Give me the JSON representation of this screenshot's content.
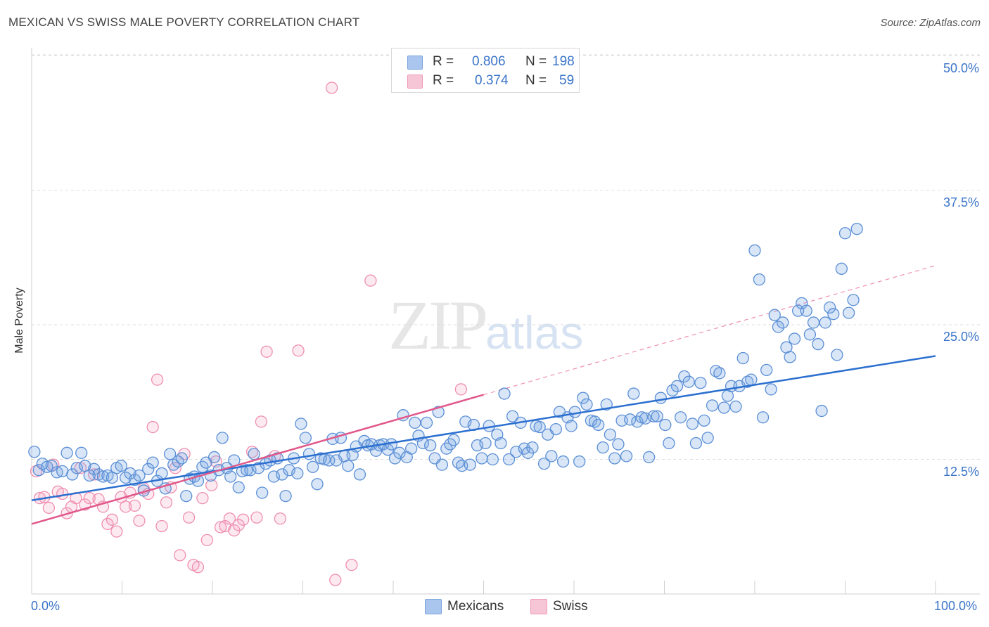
{
  "title": "MEXICAN VS SWISS MALE POVERTY CORRELATION CHART",
  "source": "Source: ZipAtlas.com",
  "watermark": {
    "zip": "ZIP",
    "atlas": "atlas"
  },
  "legend": {
    "rows": [
      {
        "r_label": "R =",
        "r_value": "0.806",
        "n_label": "N =",
        "n_value": "198",
        "color": "#aac6ef"
      },
      {
        "r_label": "R =",
        "r_value": "0.374",
        "n_label": "N =",
        "n_value": "59",
        "color": "#f7b6ca"
      }
    ]
  },
  "bottom_legend": [
    {
      "label": "Mexicans",
      "color": "#aac6ef"
    },
    {
      "label": "Swiss",
      "color": "#f7b6ca"
    }
  ],
  "colors": {
    "mexicans": "#5b8fd6",
    "mexicans_fill": "rgba(120,166,228,0.28)",
    "mexicans_line": "#2b6fd0",
    "swiss": "#ef8fb0",
    "swiss_fill": "rgba(246,160,190,0.22)",
    "swiss_line": "#e0588a",
    "tick_text": "#3a74c9",
    "grid": "#dedede"
  },
  "chart_data": {
    "type": "scatter",
    "title": "MEXICAN VS SWISS MALE POVERTY CORRELATION CHART",
    "xlabel": "",
    "ylabel": "Male Poverty",
    "xlim": [
      0,
      100
    ],
    "ylim": [
      0,
      50
    ],
    "x_tick_labels": [
      "0.0%",
      "100.0%"
    ],
    "y_ticks": [
      12.5,
      25.0,
      37.5,
      50.0
    ],
    "y_tick_labels": [
      "12.5%",
      "25.0%",
      "37.5%",
      "50.0%"
    ],
    "grid": true,
    "legend_position": "top-center",
    "series": [
      {
        "name": "Mexicans",
        "R": 0.806,
        "N": 198,
        "trend": {
          "x": [
            0,
            100
          ],
          "y": [
            8.7,
            22.1
          ]
        },
        "points": [
          [
            0.3,
            13.2
          ],
          [
            0.8,
            11.5
          ],
          [
            1.2,
            12.1
          ],
          [
            1.7,
            11.8
          ],
          [
            2.2,
            11.9
          ],
          [
            2.8,
            11.3
          ],
          [
            3.4,
            11.4
          ],
          [
            3.9,
            13.1
          ],
          [
            4.5,
            11.1
          ],
          [
            5.0,
            11.7
          ],
          [
            5.5,
            13.1
          ],
          [
            5.9,
            11.9
          ],
          [
            6.4,
            11.0
          ],
          [
            6.9,
            11.6
          ],
          [
            7.4,
            11.1
          ],
          [
            7.9,
            10.9
          ],
          [
            8.4,
            11.0
          ],
          [
            8.9,
            10.8
          ],
          [
            9.4,
            11.7
          ],
          [
            9.9,
            11.9
          ],
          [
            10.4,
            10.8
          ],
          [
            10.9,
            11.2
          ],
          [
            11.4,
            10.6
          ],
          [
            11.9,
            11.0
          ],
          [
            12.4,
            9.6
          ],
          [
            12.9,
            11.6
          ],
          [
            13.4,
            12.2
          ],
          [
            13.9,
            10.5
          ],
          [
            14.4,
            11.2
          ],
          [
            14.8,
            9.8
          ],
          [
            15.3,
            13.0
          ],
          [
            15.7,
            12.0
          ],
          [
            16.2,
            12.3
          ],
          [
            16.6,
            12.6
          ],
          [
            17.1,
            9.1
          ],
          [
            17.5,
            10.7
          ],
          [
            18.0,
            10.9
          ],
          [
            18.4,
            10.5
          ],
          [
            18.9,
            11.8
          ],
          [
            19.3,
            12.2
          ],
          [
            19.8,
            11.0
          ],
          [
            20.2,
            12.7
          ],
          [
            20.7,
            11.5
          ],
          [
            21.1,
            14.5
          ],
          [
            21.6,
            11.7
          ],
          [
            22.0,
            10.9
          ],
          [
            22.4,
            12.4
          ],
          [
            22.9,
            9.9
          ],
          [
            23.3,
            11.4
          ],
          [
            23.8,
            11.5
          ],
          [
            24.2,
            11.5
          ],
          [
            24.6,
            13.0
          ],
          [
            25.1,
            11.7
          ],
          [
            25.5,
            9.4
          ],
          [
            25.9,
            12.1
          ],
          [
            26.4,
            12.4
          ],
          [
            26.8,
            10.9
          ],
          [
            27.2,
            12.6
          ],
          [
            27.7,
            11.1
          ],
          [
            28.1,
            9.1
          ],
          [
            28.5,
            11.5
          ],
          [
            29.0,
            12.6
          ],
          [
            29.4,
            11.2
          ],
          [
            29.8,
            15.8
          ],
          [
            30.3,
            14.5
          ],
          [
            30.7,
            13.0
          ],
          [
            31.1,
            11.8
          ],
          [
            31.6,
            10.2
          ],
          [
            32.0,
            12.6
          ],
          [
            32.4,
            12.5
          ],
          [
            32.9,
            12.4
          ],
          [
            33.3,
            14.4
          ],
          [
            33.7,
            12.4
          ],
          [
            34.2,
            14.5
          ],
          [
            34.6,
            12.8
          ],
          [
            35.0,
            11.9
          ],
          [
            35.5,
            12.9
          ],
          [
            35.9,
            13.7
          ],
          [
            36.3,
            11.1
          ],
          [
            36.8,
            14.2
          ],
          [
            37.2,
            13.8
          ],
          [
            37.6,
            13.9
          ],
          [
            38.1,
            13.3
          ],
          [
            38.5,
            13.8
          ],
          [
            38.9,
            13.9
          ],
          [
            39.4,
            13.4
          ],
          [
            39.8,
            13.9
          ],
          [
            40.2,
            12.6
          ],
          [
            40.7,
            13.1
          ],
          [
            41.1,
            16.6
          ],
          [
            41.5,
            12.7
          ],
          [
            42.0,
            13.5
          ],
          [
            42.4,
            15.9
          ],
          [
            42.8,
            14.7
          ],
          [
            43.3,
            14.0
          ],
          [
            43.7,
            15.9
          ],
          [
            44.1,
            13.8
          ],
          [
            44.6,
            12.6
          ],
          [
            45.0,
            16.9
          ],
          [
            45.4,
            12.0
          ],
          [
            45.9,
            13.5
          ],
          [
            46.3,
            13.9
          ],
          [
            46.7,
            14.3
          ],
          [
            47.2,
            12.2
          ],
          [
            47.6,
            11.9
          ],
          [
            48.0,
            16.0
          ],
          [
            48.5,
            12.0
          ],
          [
            48.9,
            15.7
          ],
          [
            49.3,
            13.8
          ],
          [
            49.8,
            12.6
          ],
          [
            50.2,
            14.0
          ],
          [
            50.6,
            15.6
          ],
          [
            51.0,
            12.5
          ],
          [
            51.5,
            14.8
          ],
          [
            51.9,
            14.0
          ],
          [
            52.3,
            18.6
          ],
          [
            52.8,
            12.5
          ],
          [
            53.2,
            16.5
          ],
          [
            53.6,
            13.2
          ],
          [
            54.1,
            15.9
          ],
          [
            54.5,
            13.5
          ],
          [
            54.9,
            13.1
          ],
          [
            55.4,
            13.6
          ],
          [
            55.8,
            15.6
          ],
          [
            56.2,
            15.5
          ],
          [
            56.7,
            12.1
          ],
          [
            57.1,
            14.8
          ],
          [
            57.5,
            12.8
          ],
          [
            58.0,
            15.3
          ],
          [
            58.4,
            16.9
          ],
          [
            58.8,
            12.3
          ],
          [
            59.3,
            16.4
          ],
          [
            59.7,
            15.6
          ],
          [
            60.1,
            16.9
          ],
          [
            60.6,
            12.3
          ],
          [
            61.0,
            18.2
          ],
          [
            61.4,
            17.6
          ],
          [
            61.9,
            16.1
          ],
          [
            62.3,
            16.0
          ],
          [
            62.7,
            15.7
          ],
          [
            63.2,
            13.6
          ],
          [
            63.6,
            17.6
          ],
          [
            64.0,
            14.8
          ],
          [
            64.5,
            12.6
          ],
          [
            64.9,
            13.9
          ],
          [
            65.3,
            16.1
          ],
          [
            65.8,
            12.8
          ],
          [
            66.2,
            16.2
          ],
          [
            66.6,
            18.6
          ],
          [
            67.0,
            16.0
          ],
          [
            67.5,
            16.4
          ],
          [
            67.9,
            16.3
          ],
          [
            68.3,
            12.7
          ],
          [
            68.8,
            16.5
          ],
          [
            69.2,
            16.5
          ],
          [
            69.6,
            18.2
          ],
          [
            70.1,
            15.7
          ],
          [
            70.5,
            14.0
          ],
          [
            70.9,
            18.9
          ],
          [
            71.4,
            19.3
          ],
          [
            71.8,
            16.4
          ],
          [
            72.2,
            20.2
          ],
          [
            72.7,
            19.7
          ],
          [
            73.1,
            15.8
          ],
          [
            73.5,
            14.0
          ],
          [
            74.0,
            19.6
          ],
          [
            74.4,
            16.1
          ],
          [
            74.8,
            14.5
          ],
          [
            75.3,
            17.5
          ],
          [
            75.7,
            20.7
          ],
          [
            76.1,
            20.5
          ],
          [
            76.6,
            17.3
          ],
          [
            77.0,
            18.4
          ],
          [
            77.4,
            19.3
          ],
          [
            77.9,
            17.4
          ],
          [
            78.3,
            19.3
          ],
          [
            78.7,
            21.9
          ],
          [
            79.2,
            19.7
          ],
          [
            79.6,
            19.9
          ],
          [
            80.0,
            31.9
          ],
          [
            80.5,
            29.2
          ],
          [
            80.9,
            16.4
          ],
          [
            81.3,
            20.8
          ],
          [
            81.8,
            19.0
          ],
          [
            82.2,
            25.9
          ],
          [
            82.6,
            24.8
          ],
          [
            83.1,
            25.2
          ],
          [
            83.5,
            22.9
          ],
          [
            83.9,
            22.0
          ],
          [
            84.4,
            23.7
          ],
          [
            84.8,
            26.3
          ],
          [
            85.2,
            27.0
          ],
          [
            85.7,
            26.3
          ],
          [
            86.1,
            24.1
          ],
          [
            86.5,
            25.2
          ],
          [
            87.0,
            23.2
          ],
          [
            87.4,
            17.0
          ],
          [
            87.8,
            25.2
          ],
          [
            88.3,
            26.6
          ],
          [
            88.7,
            26.0
          ],
          [
            89.1,
            22.2
          ],
          [
            89.6,
            30.2
          ],
          [
            90.0,
            33.5
          ],
          [
            90.4,
            26.1
          ],
          [
            90.9,
            27.3
          ],
          [
            91.3,
            33.9
          ]
        ]
      },
      {
        "name": "Swiss",
        "R": 0.374,
        "N": 59,
        "trend": {
          "x": [
            0,
            50
          ],
          "y": [
            6.5,
            18.5
          ]
        },
        "trend_extended": {
          "x": [
            50,
            100
          ],
          "y": [
            18.5,
            30.5
          ]
        },
        "points": [
          [
            0.5,
            11.4
          ],
          [
            0.9,
            8.9
          ],
          [
            1.4,
            9.0
          ],
          [
            1.9,
            8.0
          ],
          [
            2.4,
            12.0
          ],
          [
            2.9,
            9.5
          ],
          [
            3.4,
            9.3
          ],
          [
            3.9,
            7.5
          ],
          [
            4.4,
            8.1
          ],
          [
            4.9,
            8.9
          ],
          [
            5.4,
            11.7
          ],
          [
            5.9,
            8.3
          ],
          [
            6.4,
            8.9
          ],
          [
            6.9,
            11.1
          ],
          [
            7.4,
            8.8
          ],
          [
            7.9,
            8.1
          ],
          [
            8.4,
            6.5
          ],
          [
            8.9,
            6.9
          ],
          [
            9.4,
            5.8
          ],
          [
            9.9,
            9.0
          ],
          [
            10.4,
            8.1
          ],
          [
            10.9,
            9.4
          ],
          [
            11.4,
            8.2
          ],
          [
            11.9,
            6.8
          ],
          [
            12.4,
            9.8
          ],
          [
            12.9,
            9.3
          ],
          [
            13.4,
            15.5
          ],
          [
            13.9,
            19.9
          ],
          [
            14.4,
            6.3
          ],
          [
            14.9,
            8.5
          ],
          [
            15.4,
            9.9
          ],
          [
            15.9,
            11.7
          ],
          [
            16.4,
            3.6
          ],
          [
            16.9,
            13.0
          ],
          [
            17.4,
            7.1
          ],
          [
            17.9,
            2.7
          ],
          [
            18.4,
            2.5
          ],
          [
            18.9,
            8.9
          ],
          [
            19.4,
            5.0
          ],
          [
            19.9,
            10.1
          ],
          [
            20.4,
            12.3
          ],
          [
            20.9,
            6.2
          ],
          [
            21.4,
            6.3
          ],
          [
            21.9,
            7.0
          ],
          [
            22.4,
            5.9
          ],
          [
            22.9,
            6.4
          ],
          [
            23.4,
            6.9
          ],
          [
            24.4,
            13.2
          ],
          [
            24.9,
            7.1
          ],
          [
            25.4,
            16.0
          ],
          [
            26.0,
            22.5
          ],
          [
            26.9,
            12.8
          ],
          [
            27.5,
            7.0
          ],
          [
            29.5,
            22.6
          ],
          [
            33.2,
            47.0
          ],
          [
            33.6,
            1.3
          ],
          [
            35.4,
            2.7
          ],
          [
            37.5,
            29.1
          ],
          [
            47.5,
            19.0
          ]
        ]
      }
    ]
  }
}
